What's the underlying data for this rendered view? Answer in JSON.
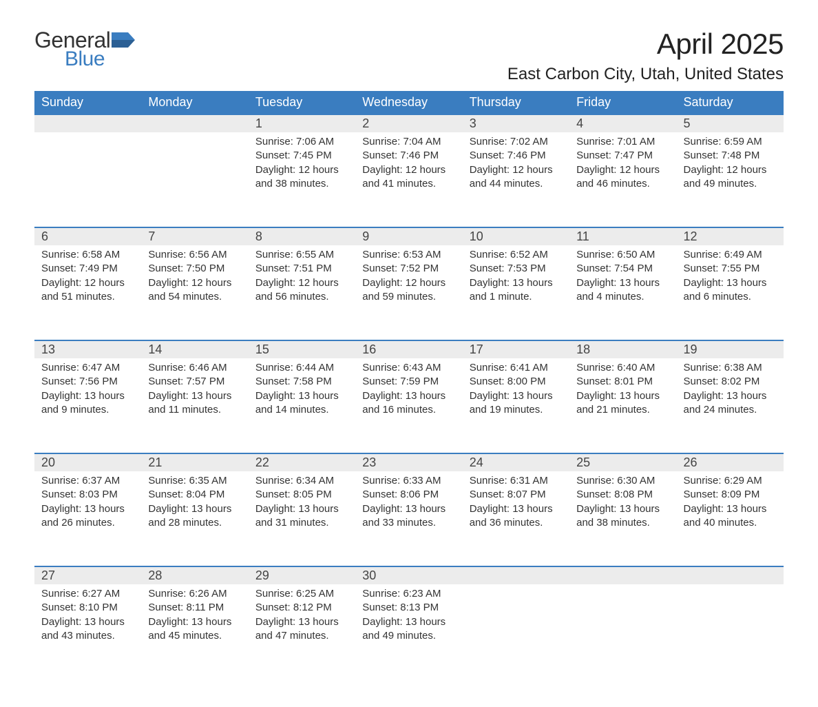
{
  "brand": {
    "part1": "General",
    "part2": "Blue"
  },
  "title": "April 2025",
  "location": "East Carbon City, Utah, United States",
  "colors": {
    "header_bg": "#3a7dc0",
    "header_text": "#ffffff",
    "daynum_bg": "#ececec",
    "border_top": "#3a7dc0",
    "brand_blue": "#3a7dc0"
  },
  "weekdays": [
    "Sunday",
    "Monday",
    "Tuesday",
    "Wednesday",
    "Thursday",
    "Friday",
    "Saturday"
  ],
  "weeks": [
    [
      {
        "n": "",
        "lines": []
      },
      {
        "n": "",
        "lines": []
      },
      {
        "n": "1",
        "lines": [
          "Sunrise: 7:06 AM",
          "Sunset: 7:45 PM",
          "Daylight: 12 hours and 38 minutes."
        ]
      },
      {
        "n": "2",
        "lines": [
          "Sunrise: 7:04 AM",
          "Sunset: 7:46 PM",
          "Daylight: 12 hours and 41 minutes."
        ]
      },
      {
        "n": "3",
        "lines": [
          "Sunrise: 7:02 AM",
          "Sunset: 7:46 PM",
          "Daylight: 12 hours and 44 minutes."
        ]
      },
      {
        "n": "4",
        "lines": [
          "Sunrise: 7:01 AM",
          "Sunset: 7:47 PM",
          "Daylight: 12 hours and 46 minutes."
        ]
      },
      {
        "n": "5",
        "lines": [
          "Sunrise: 6:59 AM",
          "Sunset: 7:48 PM",
          "Daylight: 12 hours and 49 minutes."
        ]
      }
    ],
    [
      {
        "n": "6",
        "lines": [
          "Sunrise: 6:58 AM",
          "Sunset: 7:49 PM",
          "Daylight: 12 hours and 51 minutes."
        ]
      },
      {
        "n": "7",
        "lines": [
          "Sunrise: 6:56 AM",
          "Sunset: 7:50 PM",
          "Daylight: 12 hours and 54 minutes."
        ]
      },
      {
        "n": "8",
        "lines": [
          "Sunrise: 6:55 AM",
          "Sunset: 7:51 PM",
          "Daylight: 12 hours and 56 minutes."
        ]
      },
      {
        "n": "9",
        "lines": [
          "Sunrise: 6:53 AM",
          "Sunset: 7:52 PM",
          "Daylight: 12 hours and 59 minutes."
        ]
      },
      {
        "n": "10",
        "lines": [
          "Sunrise: 6:52 AM",
          "Sunset: 7:53 PM",
          "Daylight: 13 hours and 1 minute."
        ]
      },
      {
        "n": "11",
        "lines": [
          "Sunrise: 6:50 AM",
          "Sunset: 7:54 PM",
          "Daylight: 13 hours and 4 minutes."
        ]
      },
      {
        "n": "12",
        "lines": [
          "Sunrise: 6:49 AM",
          "Sunset: 7:55 PM",
          "Daylight: 13 hours and 6 minutes."
        ]
      }
    ],
    [
      {
        "n": "13",
        "lines": [
          "Sunrise: 6:47 AM",
          "Sunset: 7:56 PM",
          "Daylight: 13 hours and 9 minutes."
        ]
      },
      {
        "n": "14",
        "lines": [
          "Sunrise: 6:46 AM",
          "Sunset: 7:57 PM",
          "Daylight: 13 hours and 11 minutes."
        ]
      },
      {
        "n": "15",
        "lines": [
          "Sunrise: 6:44 AM",
          "Sunset: 7:58 PM",
          "Daylight: 13 hours and 14 minutes."
        ]
      },
      {
        "n": "16",
        "lines": [
          "Sunrise: 6:43 AM",
          "Sunset: 7:59 PM",
          "Daylight: 13 hours and 16 minutes."
        ]
      },
      {
        "n": "17",
        "lines": [
          "Sunrise: 6:41 AM",
          "Sunset: 8:00 PM",
          "Daylight: 13 hours and 19 minutes."
        ]
      },
      {
        "n": "18",
        "lines": [
          "Sunrise: 6:40 AM",
          "Sunset: 8:01 PM",
          "Daylight: 13 hours and 21 minutes."
        ]
      },
      {
        "n": "19",
        "lines": [
          "Sunrise: 6:38 AM",
          "Sunset: 8:02 PM",
          "Daylight: 13 hours and 24 minutes."
        ]
      }
    ],
    [
      {
        "n": "20",
        "lines": [
          "Sunrise: 6:37 AM",
          "Sunset: 8:03 PM",
          "Daylight: 13 hours and 26 minutes."
        ]
      },
      {
        "n": "21",
        "lines": [
          "Sunrise: 6:35 AM",
          "Sunset: 8:04 PM",
          "Daylight: 13 hours and 28 minutes."
        ]
      },
      {
        "n": "22",
        "lines": [
          "Sunrise: 6:34 AM",
          "Sunset: 8:05 PM",
          "Daylight: 13 hours and 31 minutes."
        ]
      },
      {
        "n": "23",
        "lines": [
          "Sunrise: 6:33 AM",
          "Sunset: 8:06 PM",
          "Daylight: 13 hours and 33 minutes."
        ]
      },
      {
        "n": "24",
        "lines": [
          "Sunrise: 6:31 AM",
          "Sunset: 8:07 PM",
          "Daylight: 13 hours and 36 minutes."
        ]
      },
      {
        "n": "25",
        "lines": [
          "Sunrise: 6:30 AM",
          "Sunset: 8:08 PM",
          "Daylight: 13 hours and 38 minutes."
        ]
      },
      {
        "n": "26",
        "lines": [
          "Sunrise: 6:29 AM",
          "Sunset: 8:09 PM",
          "Daylight: 13 hours and 40 minutes."
        ]
      }
    ],
    [
      {
        "n": "27",
        "lines": [
          "Sunrise: 6:27 AM",
          "Sunset: 8:10 PM",
          "Daylight: 13 hours and 43 minutes."
        ]
      },
      {
        "n": "28",
        "lines": [
          "Sunrise: 6:26 AM",
          "Sunset: 8:11 PM",
          "Daylight: 13 hours and 45 minutes."
        ]
      },
      {
        "n": "29",
        "lines": [
          "Sunrise: 6:25 AM",
          "Sunset: 8:12 PM",
          "Daylight: 13 hours and 47 minutes."
        ]
      },
      {
        "n": "30",
        "lines": [
          "Sunrise: 6:23 AM",
          "Sunset: 8:13 PM",
          "Daylight: 13 hours and 49 minutes."
        ]
      },
      {
        "n": "",
        "lines": []
      },
      {
        "n": "",
        "lines": []
      },
      {
        "n": "",
        "lines": []
      }
    ]
  ]
}
